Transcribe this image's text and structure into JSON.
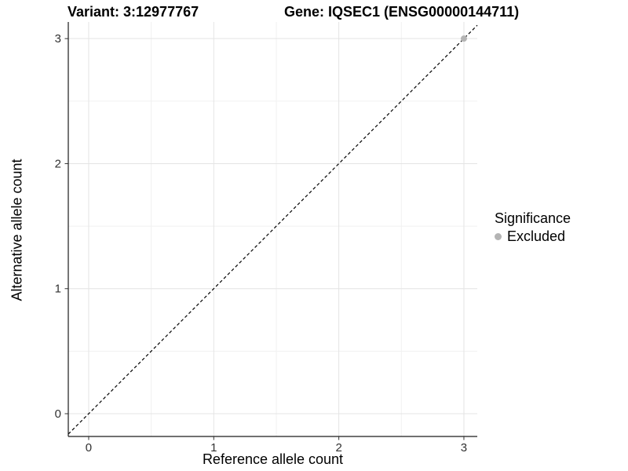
{
  "chart_data": {
    "type": "scatter",
    "title_left": "Variant: 3:12977767",
    "title_right": "Gene: IQSEC1 (ENSG00000144711)",
    "xlabel": "Reference allele count",
    "ylabel": "Alternative allele count",
    "xticks": [
      0,
      1,
      2,
      3
    ],
    "yticks": [
      0,
      1,
      2,
      3
    ],
    "minor_ticks_x": [
      0.5,
      1.5,
      2.5
    ],
    "minor_ticks_y": [
      0.5,
      1.5,
      2.5
    ],
    "xlim": [
      -0.163,
      3.107
    ],
    "ylim": [
      -0.182,
      3.133
    ],
    "grid": true,
    "legend_position": "right",
    "reference_line": {
      "equation": "y = x",
      "style": "dashed",
      "color": "#000000"
    },
    "series": [
      {
        "name": "Excluded",
        "color": "#b4b4b4",
        "marker": "circle",
        "points": [
          {
            "x": 3,
            "y": 3
          }
        ]
      }
    ],
    "legend": {
      "title": "Significance",
      "entries": [
        {
          "label": "Excluded",
          "color": "#b4b4b4",
          "marker": "circle"
        }
      ]
    },
    "colors": {
      "background": "#ffffff",
      "grid_major": "#e4e4e4",
      "grid_minor": "#f1f1f1",
      "axis_line": "#1a1a1a",
      "tick_mark": "#333333",
      "tick_label": "#303030"
    }
  }
}
